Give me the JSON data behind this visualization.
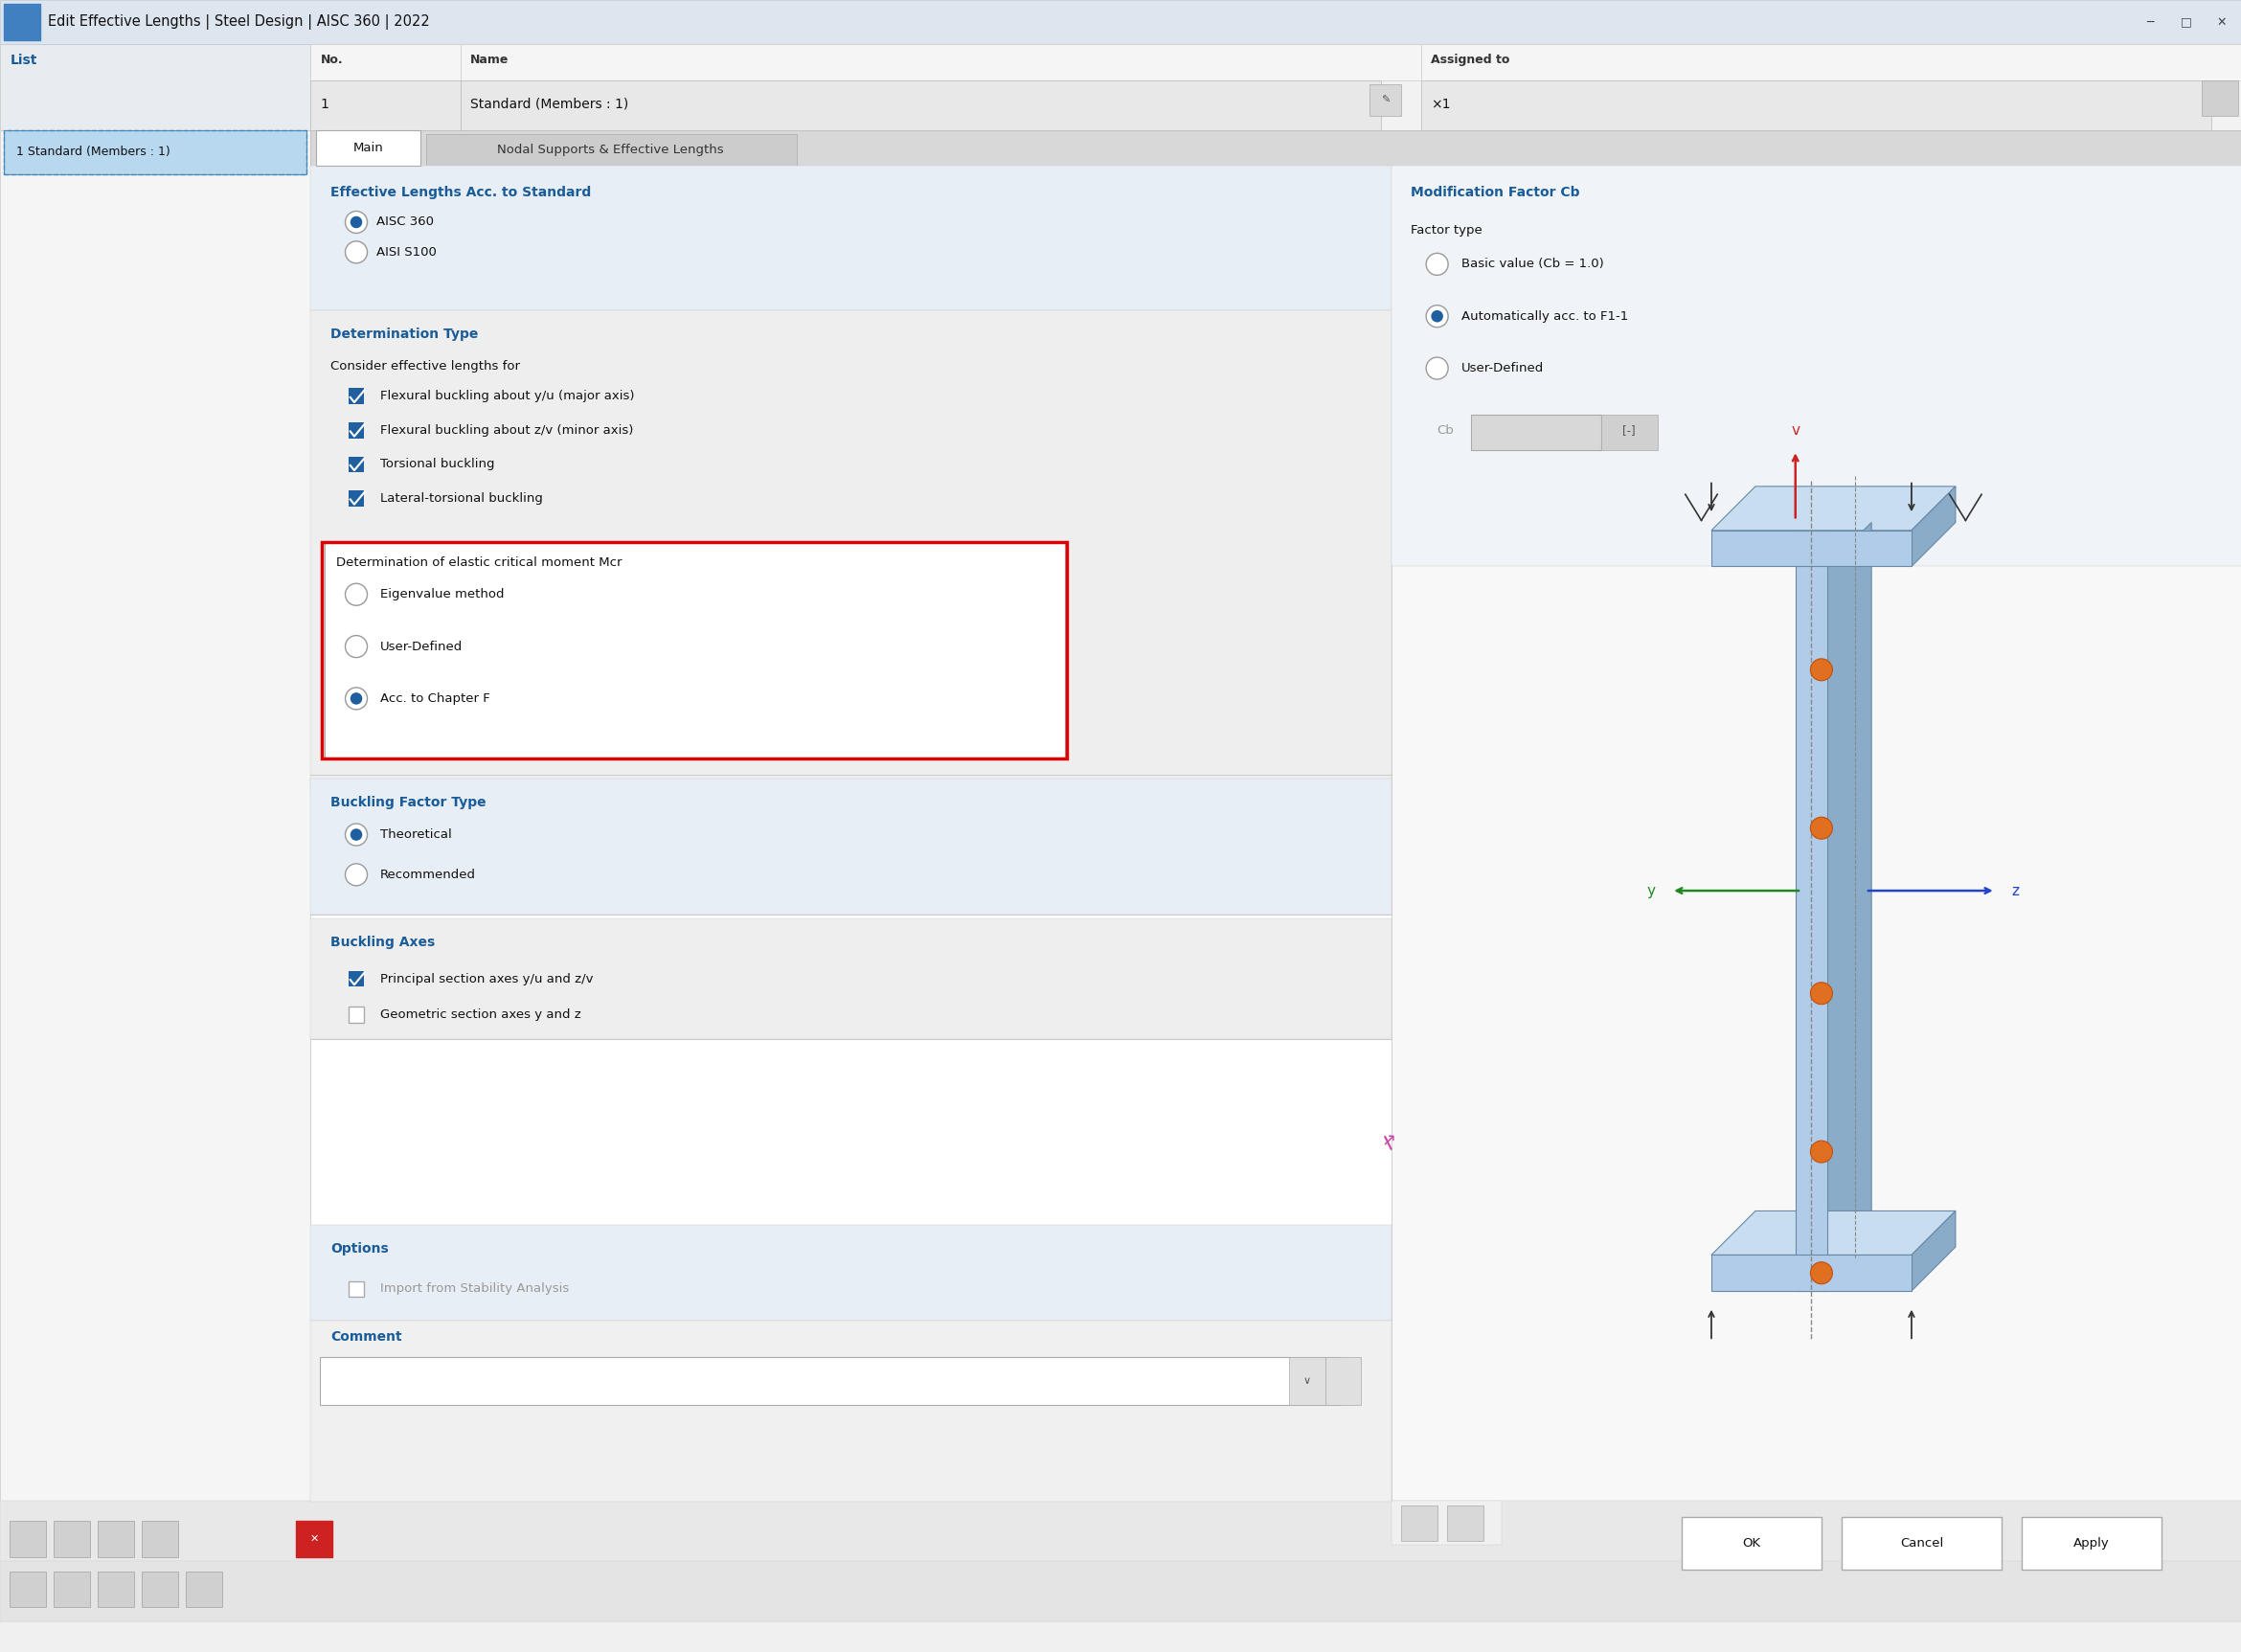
{
  "title": "Edit Effective Lengths | Steel Design | AISC 360 | 2022",
  "window_bg": "#f0f0f0",
  "titlebar_bg": "#dde5ef",
  "panel_bg": "#ffffff",
  "section_header_color": "#1a5c99",
  "list_panel_label": "List",
  "list_item": "1 Standard (Members : 1)",
  "no_label": "No.",
  "no_value": "1",
  "name_label": "Name",
  "name_value": "Standard (Members : 1)",
  "assigned_to_label": "Assigned to",
  "assigned_to_value": "×1",
  "tab1": "Main",
  "tab2": "Nodal Supports & Effective Lengths",
  "section1_title": "Effective Lengths Acc. to Standard",
  "radio1_options": [
    "AISC 360",
    "AISI S100"
  ],
  "radio1_selected": 0,
  "section2_title": "Determination Type",
  "consider_label": "Consider effective lengths for",
  "checkboxes": [
    "Flexural buckling about y/u (major axis)",
    "Flexural buckling about z/v (minor axis)",
    "Torsional buckling",
    "Lateral-torsional buckling"
  ],
  "checkboxes_checked": [
    true,
    true,
    true,
    true
  ],
  "det_elastic_label": "Determination of elastic critical moment Mcr",
  "radio2_options": [
    "Eigenvalue method",
    "User-Defined",
    "Acc. to Chapter F"
  ],
  "radio2_selected": 2,
  "section3_title": "Buckling Factor Type",
  "radio3_options": [
    "Theoretical",
    "Recommended"
  ],
  "radio3_selected": 0,
  "section4_title": "Buckling Axes",
  "check4": [
    "Principal section axes y/u and z/v",
    "Geometric section axes y and z"
  ],
  "check4_checked": [
    true,
    false
  ],
  "section5_title": "Options",
  "check5": [
    "Import from Stability Analysis"
  ],
  "check5_checked": [
    false
  ],
  "comment_label": "Comment",
  "ok_btn": "OK",
  "cancel_btn": "Cancel",
  "apply_btn": "Apply",
  "mod_factor_title": "Modification Factor Cb",
  "factor_type_label": "Factor type",
  "radio_cb_options": [
    "Basic value (Cb = 1.0)",
    "Automatically acc. to F1-1",
    "User-Defined"
  ],
  "radio_cb_selected": 1,
  "cb_label": "Cb",
  "highlight_blue": "#1e5fa0",
  "checkbox_blue": "#2060a0",
  "red_rect_color": "#dd0000",
  "gray_field_bg": "#e8e8e8",
  "list_selected_bg": "#b8d8f0",
  "scale": 2.09
}
